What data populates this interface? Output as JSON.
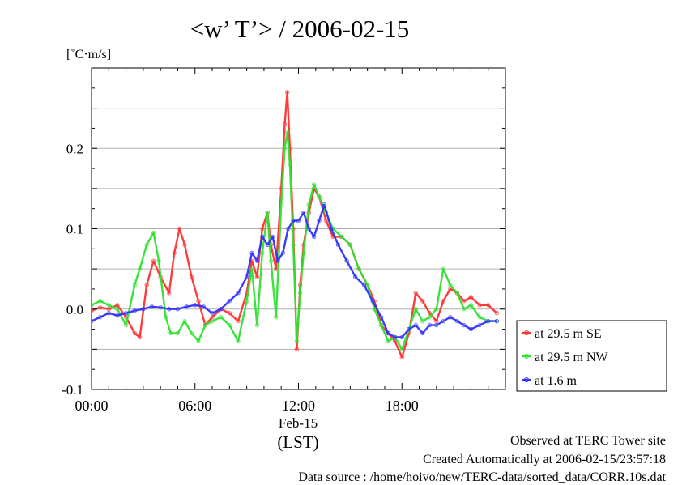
{
  "chart_data": {
    "type": "line",
    "title": "<w’ T’> / 2006-02-15",
    "ylabel": "[˚C·m/s]",
    "xlabel": "(LST)",
    "x_unit": "hour of day (LST)",
    "xlim": [
      0,
      24
    ],
    "ylim": [
      -0.1,
      0.3
    ],
    "grid": true,
    "legend_position": "right",
    "xticks": [
      {
        "x": 0,
        "label": "00:00"
      },
      {
        "x": 6,
        "label": "06:00"
      },
      {
        "x": 12,
        "label": "12:00"
      },
      {
        "x": 18,
        "label": "18:00"
      }
    ],
    "date_label": "Feb-15",
    "yticks": [
      {
        "y": -0.1,
        "label": "-0.1"
      },
      {
        "y": 0.0,
        "label": "0.0"
      },
      {
        "y": 0.1,
        "label": "0.1"
      },
      {
        "y": 0.2,
        "label": "0.2"
      }
    ],
    "series": [
      {
        "name": "at 29.5 m SE",
        "color": "#ff3030",
        "x": [
          0,
          0.5,
          1,
          1.5,
          2,
          2.5,
          2.8,
          3.2,
          3.6,
          4,
          4.5,
          4.8,
          5.1,
          5.4,
          5.8,
          6.2,
          6.6,
          7,
          7.5,
          8,
          8.5,
          9,
          9.3,
          9.6,
          9.9,
          10.2,
          10.4,
          10.7,
          11,
          11.2,
          11.35,
          11.5,
          11.7,
          11.9,
          12.1,
          12.3,
          12.6,
          12.9,
          13.2,
          13.6,
          14,
          14.5,
          15,
          15.5,
          16,
          16.4,
          16.8,
          17.2,
          17.6,
          18,
          18.4,
          18.8,
          19.2,
          19.6,
          20,
          20.4,
          20.8,
          21.2,
          21.6,
          22,
          22.5,
          23,
          23.5
        ],
        "y": [
          -0.002,
          0.002,
          0,
          0.005,
          -0.01,
          -0.03,
          -0.035,
          0.03,
          0.06,
          0.04,
          0.02,
          0.07,
          0.1,
          0.08,
          0.04,
          0.01,
          -0.02,
          -0.01,
          0,
          -0.005,
          -0.015,
          0.02,
          0.06,
          0.04,
          0.1,
          0.12,
          0.08,
          0.05,
          0.15,
          0.23,
          0.27,
          0.2,
          0.1,
          -0.05,
          0.03,
          0.08,
          0.12,
          0.15,
          0.14,
          0.11,
          0.09,
          0.09,
          0.08,
          0.05,
          0.03,
          0.01,
          -0.02,
          -0.03,
          -0.04,
          -0.06,
          -0.03,
          0.02,
          0.01,
          -0.005,
          -0.015,
          0.01,
          0.025,
          0.02,
          0.01,
          0.015,
          0.005,
          0.005,
          -0.005
        ]
      },
      {
        "name": "at 29.5 m NW",
        "color": "#30e030",
        "x": [
          0,
          0.5,
          1,
          1.5,
          2,
          2.5,
          2.8,
          3.2,
          3.6,
          3.9,
          4.3,
          4.6,
          5,
          5.4,
          5.8,
          6.2,
          6.6,
          7,
          7.5,
          8,
          8.5,
          9,
          9.3,
          9.6,
          9.9,
          10.2,
          10.4,
          10.7,
          11,
          11.2,
          11.35,
          11.5,
          11.7,
          11.9,
          12.1,
          12.3,
          12.6,
          12.9,
          13.2,
          13.6,
          14,
          14.5,
          15,
          15.5,
          16,
          16.4,
          16.8,
          17.2,
          17.6,
          18,
          18.4,
          18.8,
          19.2,
          19.6,
          20,
          20.4,
          20.8,
          21.2,
          21.6,
          22,
          22.5,
          23,
          23.5
        ],
        "y": [
          0.005,
          0.01,
          0.005,
          0,
          -0.02,
          0.03,
          0.05,
          0.08,
          0.095,
          0.06,
          -0.01,
          -0.03,
          -0.03,
          -0.015,
          -0.03,
          -0.04,
          -0.02,
          -0.015,
          -0.01,
          -0.02,
          -0.04,
          0.01,
          0.05,
          -0.02,
          0.07,
          0.12,
          0.06,
          -0.01,
          0.13,
          0.2,
          0.22,
          0.18,
          0.08,
          -0.04,
          0.02,
          0.07,
          0.13,
          0.155,
          0.14,
          0.12,
          0.1,
          0.09,
          0.08,
          0.05,
          0.03,
          0.0,
          -0.02,
          -0.04,
          -0.035,
          -0.05,
          -0.025,
          0.0,
          -0.015,
          -0.01,
          0.0,
          0.05,
          0.03,
          0.02,
          0.0,
          0.005,
          -0.01,
          -0.015,
          -0.015
        ]
      },
      {
        "name": "at 1.6 m",
        "color": "#3030ff",
        "x": [
          0,
          0.5,
          1,
          1.5,
          2,
          2.5,
          3,
          3.5,
          4,
          4.5,
          5,
          5.5,
          6,
          6.5,
          7,
          7.5,
          8,
          8.5,
          9,
          9.3,
          9.6,
          9.9,
          10.2,
          10.5,
          10.8,
          11.1,
          11.4,
          11.7,
          12,
          12.3,
          12.6,
          12.9,
          13.2,
          13.5,
          13.9,
          14.3,
          14.8,
          15.3,
          15.8,
          16.3,
          16.8,
          17.2,
          17.6,
          18,
          18.4,
          18.8,
          19.2,
          19.6,
          20,
          20.4,
          20.8,
          21.2,
          21.6,
          22,
          22.5,
          23,
          23.5
        ],
        "y": [
          -0.015,
          -0.01,
          -0.005,
          -0.008,
          -0.005,
          -0.002,
          0,
          0.003,
          0.002,
          0,
          0,
          0.003,
          0.005,
          0.003,
          -0.005,
          0,
          0.01,
          0.02,
          0.04,
          0.07,
          0.06,
          0.09,
          0.08,
          0.09,
          0.06,
          0.07,
          0.1,
          0.11,
          0.11,
          0.12,
          0.1,
          0.09,
          0.11,
          0.13,
          0.1,
          0.08,
          0.06,
          0.04,
          0.03,
          0.01,
          -0.01,
          -0.03,
          -0.035,
          -0.035,
          -0.025,
          -0.02,
          -0.03,
          -0.02,
          -0.02,
          -0.015,
          -0.01,
          -0.015,
          -0.02,
          -0.025,
          -0.02,
          -0.015,
          -0.015
        ]
      }
    ]
  },
  "footer": {
    "observed": "Observed at TERC Tower site",
    "created": "Created Automatically at 2006-02-15/23:57:18",
    "source": "Data source : /home/hoivo/new/TERC-data/sorted_data/CORR.10s.dat"
  }
}
